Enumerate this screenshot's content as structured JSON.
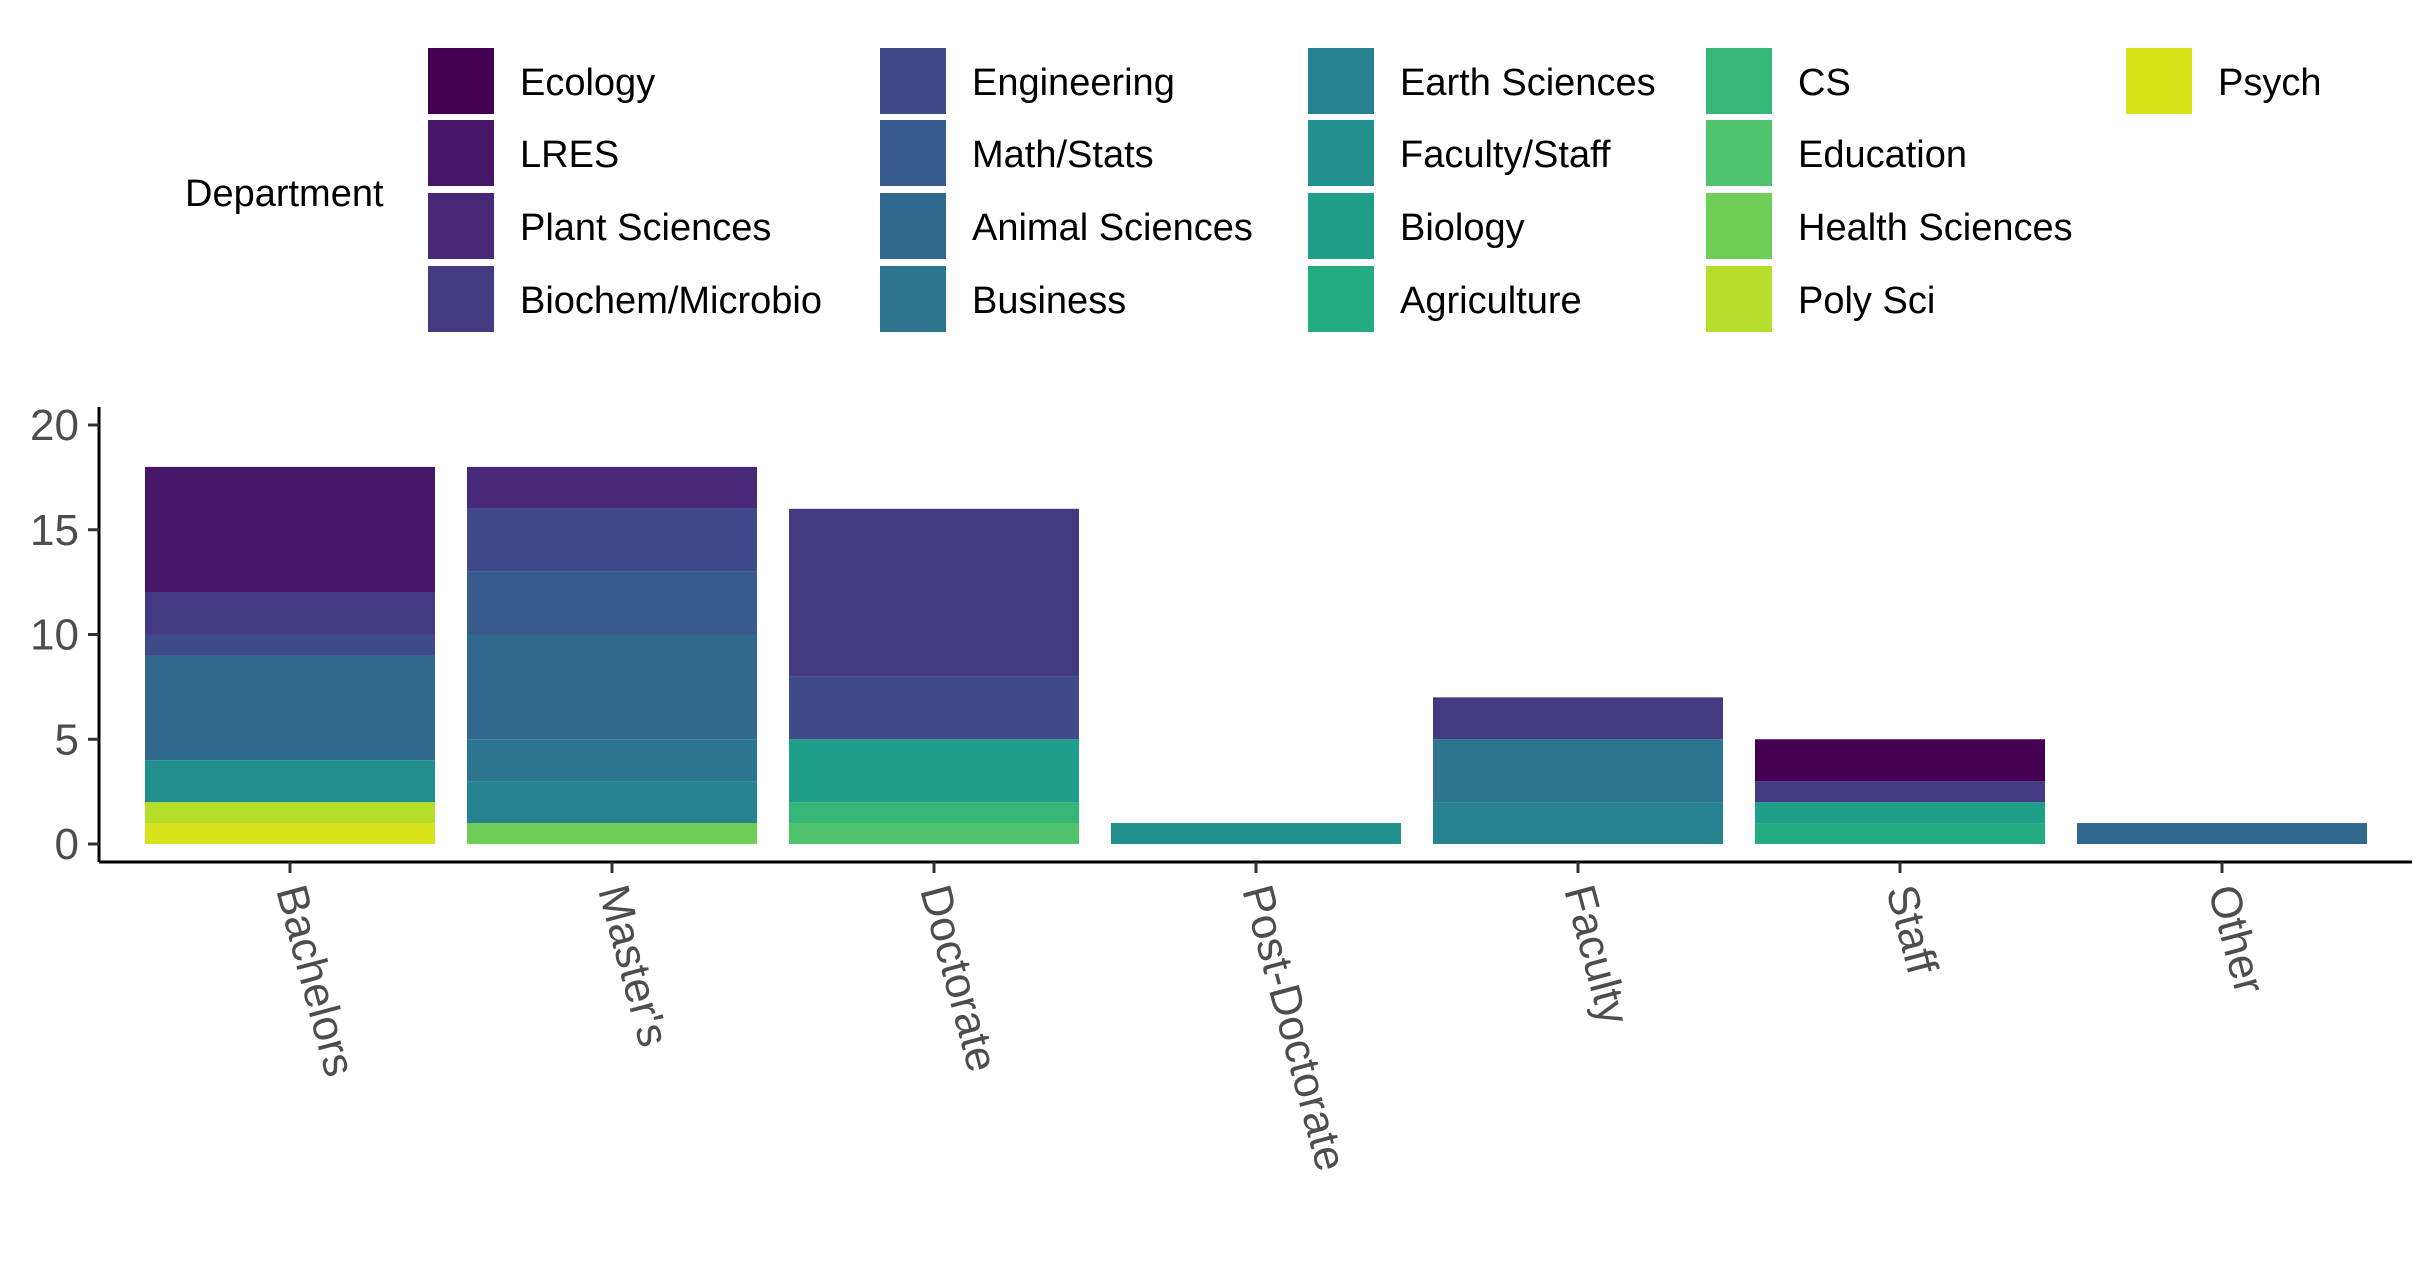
{
  "chart_data": {
    "type": "bar",
    "stacked": true,
    "legend": {
      "title": "Department",
      "placement": "top",
      "items": [
        {
          "name": "Ecology",
          "color": "#440154"
        },
        {
          "name": "LRES",
          "color": "#481668"
        },
        {
          "name": "Plant Sciences",
          "color": "#482878"
        },
        {
          "name": "Biochem/Microbio",
          "color": "#443A83"
        },
        {
          "name": "Engineering",
          "color": "#3E4A89"
        },
        {
          "name": "Math/Stats",
          "color": "#375A8C"
        },
        {
          "name": "Animal Sciences",
          "color": "#31688E"
        },
        {
          "name": "Business",
          "color": "#2B758E"
        },
        {
          "name": "Earth Sciences",
          "color": "#26828E"
        },
        {
          "name": "Faculty/Staff",
          "color": "#21908C"
        },
        {
          "name": "Biology",
          "color": "#1F9E89"
        },
        {
          "name": "Agriculture",
          "color": "#25AB82"
        },
        {
          "name": "CS",
          "color": "#35B779"
        },
        {
          "name": "Education",
          "color": "#4EC36B"
        },
        {
          "name": "Health Sciences",
          "color": "#6ECE58"
        },
        {
          "name": "Poly Sci",
          "color": "#B5DE2B"
        },
        {
          "name": "Psych",
          "color": "#D8E219"
        }
      ]
    },
    "categories": [
      "Bachelors",
      "Master's",
      "Doctorate",
      "Post-Doctorate",
      "Faculty",
      "Staff",
      "Other"
    ],
    "series": [
      {
        "name": "Ecology",
        "values": [
          0,
          0,
          0,
          0,
          0,
          2,
          0
        ]
      },
      {
        "name": "LRES",
        "values": [
          6,
          0,
          0,
          0,
          0,
          0,
          0
        ]
      },
      {
        "name": "Plant Sciences",
        "values": [
          0,
          2,
          0,
          0,
          0,
          0,
          0
        ]
      },
      {
        "name": "Biochem/Microbio",
        "values": [
          2,
          0,
          8,
          0,
          2,
          1,
          0
        ]
      },
      {
        "name": "Engineering",
        "values": [
          1,
          3,
          3,
          0,
          0,
          0,
          0
        ]
      },
      {
        "name": "Math/Stats",
        "values": [
          0,
          3,
          0,
          0,
          0,
          0,
          0
        ]
      },
      {
        "name": "Animal Sciences",
        "values": [
          5,
          5,
          0,
          0,
          0,
          0,
          1
        ]
      },
      {
        "name": "Business",
        "values": [
          0,
          2,
          0,
          0,
          3,
          0,
          0
        ]
      },
      {
        "name": "Earth Sciences",
        "values": [
          0,
          2,
          0,
          0,
          2,
          0,
          0
        ]
      },
      {
        "name": "Faculty/Staff",
        "values": [
          2,
          0,
          0,
          1,
          0,
          0,
          0
        ]
      },
      {
        "name": "Biology",
        "values": [
          0,
          0,
          3,
          0,
          0,
          1,
          0
        ]
      },
      {
        "name": "Agriculture",
        "values": [
          0,
          0,
          0,
          0,
          0,
          1,
          0
        ]
      },
      {
        "name": "CS",
        "values": [
          0,
          0,
          1,
          0,
          0,
          0,
          0
        ]
      },
      {
        "name": "Education",
        "values": [
          0,
          0,
          1,
          0,
          0,
          0,
          0
        ]
      },
      {
        "name": "Health Sciences",
        "values": [
          0,
          1,
          0,
          0,
          0,
          0,
          0
        ]
      },
      {
        "name": "Poly Sci",
        "values": [
          1,
          0,
          0,
          0,
          0,
          0,
          0
        ]
      },
      {
        "name": "Psych",
        "values": [
          1,
          0,
          0,
          0,
          0,
          0,
          0
        ]
      }
    ],
    "ylim": [
      0,
      20
    ],
    "yticks": [
      0,
      5,
      10,
      15,
      20
    ],
    "xlabel": "",
    "ylabel": "",
    "x_tick_rotation": "-75deg",
    "grid": false
  }
}
